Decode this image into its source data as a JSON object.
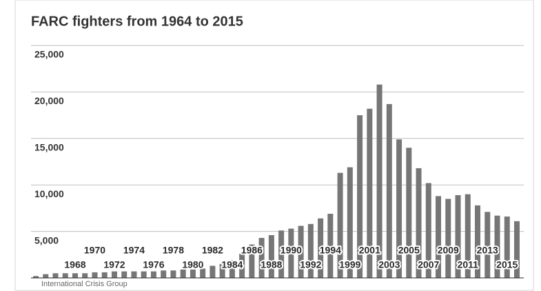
{
  "chart_data": {
    "type": "bar",
    "title": "FARC fighters from 1964 to 2015",
    "source": "International Crisis Group",
    "categories": [
      null,
      null,
      null,
      null,
      "1968",
      null,
      "1970",
      null,
      "1972",
      null,
      "1974",
      null,
      "1976",
      null,
      "1978",
      null,
      "1980",
      null,
      "1982",
      null,
      "1984",
      null,
      "1986",
      null,
      "1988",
      null,
      "1990",
      null,
      "1992",
      null,
      "1994",
      null,
      "1999",
      null,
      "2001",
      null,
      "2003",
      null,
      "2005",
      null,
      "2007",
      null,
      "2009",
      null,
      "2011",
      null,
      "2013",
      null,
      "2015",
      null
    ],
    "values": [
      200,
      400,
      500,
      500,
      500,
      500,
      600,
      600,
      700,
      700,
      700,
      700,
      700,
      800,
      800,
      900,
      900,
      1000,
      1300,
      1500,
      1900,
      2600,
      3600,
      4300,
      4600,
      5100,
      5300,
      5600,
      5800,
      6400,
      6900,
      11300,
      11900,
      17500,
      18200,
      20800,
      18700,
      14900,
      14000,
      11800,
      10200,
      8800,
      8500,
      8900,
      9000,
      7800,
      7100,
      6700,
      6600,
      6100
    ],
    "color": "#767676",
    "ylim": [
      0,
      25000
    ],
    "yticks": [
      {
        "value": 5000,
        "label": "5,000"
      },
      {
        "value": 10000,
        "label": "10,000"
      },
      {
        "value": 15000,
        "label": "15,000"
      },
      {
        "value": 20000,
        "label": "20,000"
      },
      {
        "value": 25000,
        "label": "25,000"
      }
    ],
    "grid": true
  }
}
